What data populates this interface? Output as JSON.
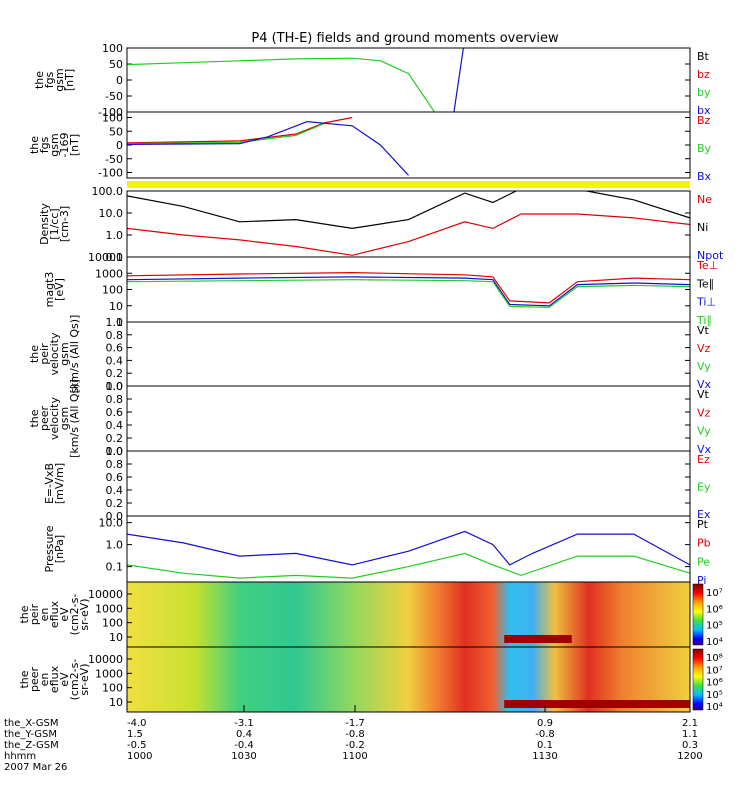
{
  "title": "P4 (TH-E) fields and ground moments overview",
  "colors": {
    "black": "#000000",
    "red": "#e00000",
    "green": "#22cc22",
    "blue": "#1010d0",
    "yellow": "#f5f500"
  },
  "chart_data": [
    {
      "id": "fgs",
      "type": "line",
      "ylabel": [
        "the",
        "fgs",
        "gsm",
        "[nT]"
      ],
      "ylim": [
        -100,
        100
      ],
      "yticks": [
        "100",
        "50",
        "0",
        "-50",
        "-100"
      ],
      "ytick_values": [
        100,
        50,
        0,
        -50,
        -100
      ],
      "legend": [
        {
          "text": "Bt",
          "color": "black"
        },
        {
          "text": "bz",
          "color": "red"
        },
        {
          "text": "by",
          "color": "green"
        },
        {
          "text": "bx",
          "color": "blue"
        }
      ],
      "series": [
        {
          "name": "by",
          "color": "green",
          "points": [
            [
              0,
              48
            ],
            [
              0.1,
              54
            ],
            [
              0.2,
              60
            ],
            [
              0.3,
              66
            ],
            [
              0.4,
              68
            ],
            [
              0.45,
              60
            ],
            [
              0.5,
              20
            ],
            [
              0.55,
              -110
            ]
          ]
        },
        {
          "name": "bx",
          "color": "blue",
          "points": [
            [
              0.58,
              -110
            ],
            [
              0.6,
              130
            ]
          ]
        }
      ]
    },
    {
      "id": "fgs69",
      "type": "line",
      "ylabel": [
        "the",
        "fgs",
        "gsm",
        "-169",
        "[nT]"
      ],
      "ylim": [
        -120,
        120
      ],
      "yticks": [
        "100",
        "50",
        "0",
        "-50",
        "-100"
      ],
      "ytick_values": [
        100,
        50,
        0,
        -50,
        -100
      ],
      "legend": [
        {
          "text": "Bz",
          "color": "red"
        },
        {
          "text": "By",
          "color": "green"
        },
        {
          "text": "Bx",
          "color": "blue"
        }
      ],
      "series": [
        {
          "name": "Bz",
          "color": "red",
          "points": [
            [
              0,
              8
            ],
            [
              0.2,
              15
            ],
            [
              0.3,
              40
            ],
            [
              0.35,
              80
            ],
            [
              0.4,
              100
            ]
          ]
        },
        {
          "name": "By",
          "color": "green",
          "points": [
            [
              0,
              5
            ],
            [
              0.2,
              10
            ],
            [
              0.3,
              35
            ],
            [
              0.35,
              78
            ]
          ]
        },
        {
          "name": "Bx",
          "color": "blue",
          "points": [
            [
              0,
              2
            ],
            [
              0.2,
              5
            ],
            [
              0.25,
              30
            ],
            [
              0.32,
              85
            ],
            [
              0.4,
              70
            ],
            [
              0.45,
              0
            ],
            [
              0.5,
              -110
            ]
          ]
        }
      ]
    },
    {
      "id": "density",
      "type": "line",
      "scale": "log",
      "ylabel": [
        "Density",
        "[1/cc]",
        "[cm-3]"
      ],
      "ylim": [
        0.1,
        100
      ],
      "yticks": [
        "100.0",
        "10.0",
        "1.0",
        "0.1"
      ],
      "ytick_values": [
        100,
        10,
        1,
        0.1
      ],
      "legend": [
        {
          "text": "Ne",
          "color": "red"
        },
        {
          "text": "Ni",
          "color": "black"
        },
        {
          "text": "Npot",
          "color": "blue"
        }
      ],
      "series": [
        {
          "name": "Ni",
          "color": "black",
          "points": [
            [
              0,
              60
            ],
            [
              0.1,
              20
            ],
            [
              0.2,
              4
            ],
            [
              0.3,
              5
            ],
            [
              0.4,
              2
            ],
            [
              0.5,
              5
            ],
            [
              0.6,
              80
            ],
            [
              0.65,
              30
            ],
            [
              0.7,
              130
            ],
            [
              0.8,
              120
            ],
            [
              0.9,
              40
            ],
            [
              1,
              6
            ]
          ]
        },
        {
          "name": "Ne",
          "color": "red",
          "points": [
            [
              0,
              2
            ],
            [
              0.1,
              1
            ],
            [
              0.2,
              0.6
            ],
            [
              0.3,
              0.3
            ],
            [
              0.4,
              0.12
            ],
            [
              0.5,
              0.5
            ],
            [
              0.6,
              4
            ],
            [
              0.65,
              2
            ],
            [
              0.7,
              9
            ],
            [
              0.8,
              9
            ],
            [
              0.9,
              6
            ],
            [
              1,
              3
            ]
          ]
        }
      ]
    },
    {
      "id": "temp",
      "type": "line",
      "scale": "log",
      "ylabel": [
        "magt3",
        "[eV]"
      ],
      "ylim": [
        1,
        10000
      ],
      "yticks": [
        "10000",
        "1000",
        "100",
        "10",
        "1"
      ],
      "ytick_values": [
        10000,
        1000,
        100,
        10,
        1
      ],
      "legend": [
        {
          "text": "Te⊥",
          "color": "red"
        },
        {
          "text": "Te∥",
          "color": "black"
        },
        {
          "text": "Ti⊥",
          "color": "blue"
        },
        {
          "text": "Ti∥",
          "color": "green"
        }
      ],
      "series": [
        {
          "name": "Te",
          "color": "red",
          "points": [
            [
              0,
              700
            ],
            [
              0.2,
              900
            ],
            [
              0.4,
              1100
            ],
            [
              0.6,
              800
            ],
            [
              0.65,
              600
            ],
            [
              0.68,
              20
            ],
            [
              0.75,
              15
            ],
            [
              0.8,
              300
            ],
            [
              0.9,
              500
            ],
            [
              1,
              400
            ]
          ]
        },
        {
          "name": "Ti",
          "color": "blue",
          "points": [
            [
              0,
              400
            ],
            [
              0.2,
              500
            ],
            [
              0.4,
              600
            ],
            [
              0.6,
              500
            ],
            [
              0.65,
              400
            ],
            [
              0.68,
              12
            ],
            [
              0.75,
              10
            ],
            [
              0.8,
              200
            ],
            [
              0.9,
              250
            ],
            [
              1,
              200
            ]
          ]
        },
        {
          "name": "Ti par",
          "color": "green",
          "points": [
            [
              0,
              300
            ],
            [
              0.2,
              350
            ],
            [
              0.4,
              400
            ],
            [
              0.6,
              350
            ],
            [
              0.65,
              300
            ],
            [
              0.68,
              9
            ],
            [
              0.75,
              8
            ],
            [
              0.8,
              150
            ],
            [
              0.9,
              180
            ],
            [
              1,
              150
            ]
          ]
        }
      ]
    },
    {
      "id": "peir",
      "type": "line",
      "ylabel": [
        "the",
        "peir",
        "velocity",
        "gsm",
        "[km/s (All Qs)]"
      ],
      "ylim": [
        0,
        1
      ],
      "yticks": [
        "1.0",
        "0.8",
        "0.6",
        "0.4",
        "0.2",
        "0.0"
      ],
      "ytick_values": [
        1,
        0.8,
        0.6,
        0.4,
        0.2,
        0
      ],
      "legend": [
        {
          "text": "Vt",
          "color": "black"
        },
        {
          "text": "Vz",
          "color": "red"
        },
        {
          "text": "Vy",
          "color": "green"
        },
        {
          "text": "Vx",
          "color": "blue"
        }
      ],
      "series": []
    },
    {
      "id": "peer",
      "type": "line",
      "ylabel": [
        "the",
        "peer",
        "velocity",
        "gsm",
        "[km/s (All Qs)]"
      ],
      "ylim": [
        0,
        1
      ],
      "yticks": [
        "1.0",
        "0.8",
        "0.6",
        "0.4",
        "0.2",
        "0.0"
      ],
      "ytick_values": [
        1,
        0.8,
        0.6,
        0.4,
        0.2,
        0
      ],
      "legend": [
        {
          "text": "Vt",
          "color": "black"
        },
        {
          "text": "Vz",
          "color": "red"
        },
        {
          "text": "Vy",
          "color": "green"
        },
        {
          "text": "Vx",
          "color": "blue"
        }
      ],
      "series": []
    },
    {
      "id": "efield",
      "type": "line",
      "ylabel": [
        "E=-VxB",
        "[mV/m]"
      ],
      "ylim": [
        0,
        1
      ],
      "yticks": [
        "1.0",
        "0.8",
        "0.6",
        "0.4",
        "0.2",
        "0.0"
      ],
      "ytick_values": [
        1,
        0.8,
        0.6,
        0.4,
        0.2,
        0
      ],
      "legend": [
        {
          "text": "Ez",
          "color": "red"
        },
        {
          "text": "Ey",
          "color": "green"
        },
        {
          "text": "Ex",
          "color": "blue"
        }
      ],
      "series": []
    },
    {
      "id": "pressure",
      "type": "line",
      "scale": "log",
      "ylabel": [
        "Pressure",
        "[nPa]"
      ],
      "ylim": [
        0.02,
        20
      ],
      "yticks": [
        "10.0",
        "1.0",
        "0.1"
      ],
      "ytick_values": [
        10,
        1,
        0.1
      ],
      "legend": [
        {
          "text": "Pt",
          "color": "black"
        },
        {
          "text": "Pb",
          "color": "red"
        },
        {
          "text": "Pe",
          "color": "green"
        },
        {
          "text": "Pi",
          "color": "blue"
        }
      ],
      "series": [
        {
          "name": "Pi",
          "color": "blue",
          "points": [
            [
              0,
              3
            ],
            [
              0.1,
              1.2
            ],
            [
              0.2,
              0.3
            ],
            [
              0.3,
              0.4
            ],
            [
              0.4,
              0.12
            ],
            [
              0.5,
              0.5
            ],
            [
              0.6,
              4
            ],
            [
              0.65,
              1
            ],
            [
              0.68,
              0.12
            ],
            [
              0.72,
              0.4
            ],
            [
              0.8,
              3
            ],
            [
              0.9,
              3
            ],
            [
              1,
              0.12
            ]
          ]
        },
        {
          "name": "Pe",
          "color": "green",
          "points": [
            [
              0,
              0.12
            ],
            [
              0.1,
              0.05
            ],
            [
              0.2,
              0.03
            ],
            [
              0.3,
              0.04
            ],
            [
              0.4,
              0.03
            ],
            [
              0.5,
              0.1
            ],
            [
              0.6,
              0.4
            ],
            [
              0.65,
              0.12
            ],
            [
              0.7,
              0.04
            ],
            [
              0.8,
              0.3
            ],
            [
              0.9,
              0.3
            ],
            [
              1,
              0.05
            ]
          ]
        }
      ]
    },
    {
      "id": "peir_en",
      "type": "heatmap",
      "ylabel": [
        "the",
        "peir",
        "en",
        "eflux",
        "eV",
        "(cm2-s-",
        "sr-eV)"
      ],
      "yticks": [
        "10000",
        "1000",
        "100",
        "10"
      ],
      "colorbar": {
        "ticks": [
          "10⁷",
          "10⁶",
          "10⁵",
          "10⁴"
        ]
      }
    },
    {
      "id": "peer_en",
      "type": "heatmap",
      "ylabel": [
        "the",
        "peer",
        "en",
        "eflux",
        "eV",
        "(cm2-s-",
        "sr-eV)"
      ],
      "yticks": [
        "10000",
        "1000",
        "100",
        "10"
      ],
      "colorbar": {
        "ticks": [
          "10⁸",
          "10⁷",
          "10⁶",
          "10⁵",
          "10⁴"
        ]
      }
    }
  ],
  "xaxis": {
    "rows": [
      {
        "label": "the_X-GSM",
        "values": [
          "-4.0",
          "-3.1",
          "-1.7",
          "0.9",
          "2.1"
        ]
      },
      {
        "label": "the_Y-GSM",
        "values": [
          "1.5",
          "0.4",
          "-0.8",
          "-0.8",
          "1.1"
        ]
      },
      {
        "label": "the_Z-GSM",
        "values": [
          "-0.5",
          "-0.4",
          "-0.2",
          "0.1",
          "0.3"
        ]
      },
      {
        "label": "hhmm",
        "values": [
          "1000",
          "1030",
          "1100",
          "1130",
          "1200"
        ]
      }
    ],
    "date": "2007 Mar 26"
  }
}
